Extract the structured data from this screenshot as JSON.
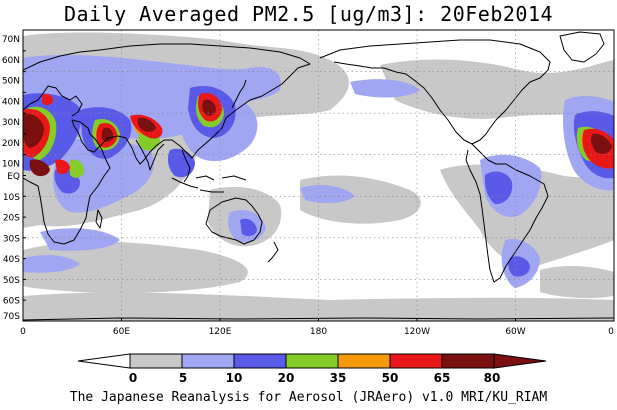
{
  "title": "Daily Averaged PM2.5 [ug/m3]: 20Feb2014",
  "footer": "The Japanese Reanalysis for Aerosol (JRAero) v1.0 MRI/KU_RIAM",
  "lat_ticks": [
    "70N",
    "60N",
    "50N",
    "40N",
    "30N",
    "20N",
    "10N",
    "EQ",
    "10S",
    "20S",
    "30S",
    "40S",
    "50S",
    "60S",
    "70S"
  ],
  "lon_ticks": [
    "0",
    "60E",
    "120E",
    "180",
    "120W",
    "60W",
    "0"
  ],
  "colorbar": {
    "labels": [
      "0",
      "5",
      "10",
      "20",
      "35",
      "50",
      "65",
      "80"
    ],
    "colors": [
      "#ffffff",
      "#c8c8c8",
      "#a0a6f2",
      "#5a5ae8",
      "#84cc28",
      "#f59a0c",
      "#e81818",
      "#7a1010"
    ]
  },
  "colors": {
    "grey": "#c8c8c8",
    "lavender": "#a0a6f2",
    "blue": "#5a5ae8",
    "green": "#84cc28",
    "orange": "#f59a0c",
    "red": "#e81818",
    "maroon": "#7a1010"
  }
}
